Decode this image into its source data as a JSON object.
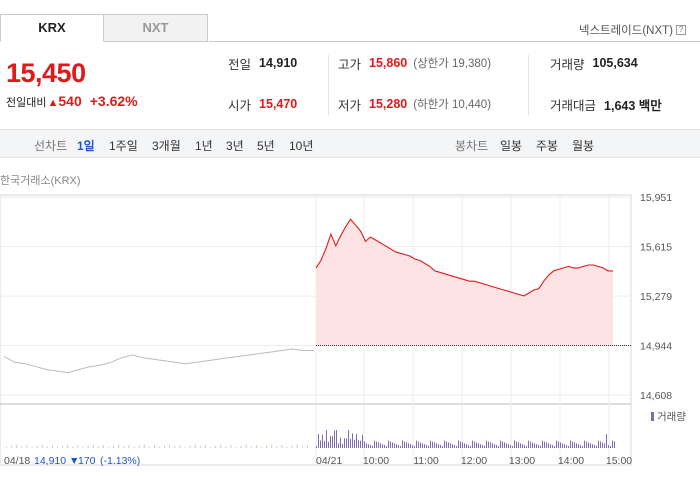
{
  "tabs": [
    {
      "label": "KRX",
      "active": true
    },
    {
      "label": "NXT",
      "active": false
    }
  ],
  "nxt_link": {
    "label": "넥스트레이드(NXT)",
    "help": "?"
  },
  "quote": {
    "price": "15,450",
    "change_label": "전일대비",
    "change_arrow": "▲",
    "change_amount": "540",
    "change_percent": "+3.62%"
  },
  "stats": {
    "prev_close": {
      "label": "전일",
      "value": "14,910"
    },
    "high": {
      "label": "고가",
      "value": "15,860",
      "sub": "(상한가 19,380)"
    },
    "volume": {
      "label": "거래량",
      "value": "105,634"
    },
    "open": {
      "label": "시가",
      "value": "15,470"
    },
    "low": {
      "label": "저가",
      "value": "15,280",
      "sub": "(하한가 10,440)"
    },
    "amount": {
      "label": "거래대금",
      "value": "1,643 백만"
    }
  },
  "period_bar": {
    "line_label": "선차트",
    "line_periods": [
      "1일",
      "1주일",
      "3개월",
      "1년",
      "3년",
      "5년",
      "10년"
    ],
    "selected": "1일",
    "candle_label": "봉차트",
    "candle_periods": [
      "일봉",
      "주봉",
      "월봉"
    ]
  },
  "chart_title": "한국거래소(KRX)",
  "colors": {
    "up": "#e01a1a",
    "down": "#1d56c9",
    "fill": "#fde3e3",
    "prev_line": "#bbbbbb",
    "volume_bar": "#7e6bb0"
  },
  "chart_data": {
    "type": "line",
    "y_ticks": [
      15951,
      15615,
      15279,
      14944,
      14608
    ],
    "y_tick_labels": [
      "15,951",
      "15,615",
      "15,279",
      "14,944",
      "14,608"
    ],
    "ylim": [
      14608,
      15951
    ],
    "reference_line": 14944,
    "previous_day": {
      "date": "04/18",
      "close": "14,910",
      "change_arrow": "▼",
      "change": "170",
      "change_percent": "(-1.13%)",
      "values": [
        14870,
        14830,
        14820,
        14800,
        14780,
        14770,
        14760,
        14780,
        14800,
        14810,
        14830,
        14860,
        14880,
        14860,
        14850,
        14840,
        14830,
        14820,
        14830,
        14840,
        14850,
        14860,
        14870,
        14880,
        14890,
        14900,
        14910,
        14920,
        14910,
        14910
      ]
    },
    "today": {
      "date": "04/21",
      "x_labels": [
        "10:00",
        "11:00",
        "12:00",
        "13:00",
        "14:00",
        "15:00"
      ],
      "values": [
        15470,
        15520,
        15600,
        15700,
        15620,
        15690,
        15750,
        15800,
        15760,
        15720,
        15650,
        15680,
        15660,
        15640,
        15620,
        15600,
        15580,
        15570,
        15560,
        15550,
        15530,
        15520,
        15500,
        15480,
        15450,
        15440,
        15430,
        15420,
        15410,
        15400,
        15390,
        15380,
        15380,
        15370,
        15360,
        15350,
        15340,
        15330,
        15320,
        15310,
        15300,
        15290,
        15280,
        15300,
        15320,
        15330,
        15380,
        15420,
        15450,
        15460,
        15470,
        15480,
        15470,
        15470,
        15480,
        15490,
        15490,
        15480,
        15470,
        15450,
        15450
      ]
    },
    "volume_label": "거래량"
  }
}
